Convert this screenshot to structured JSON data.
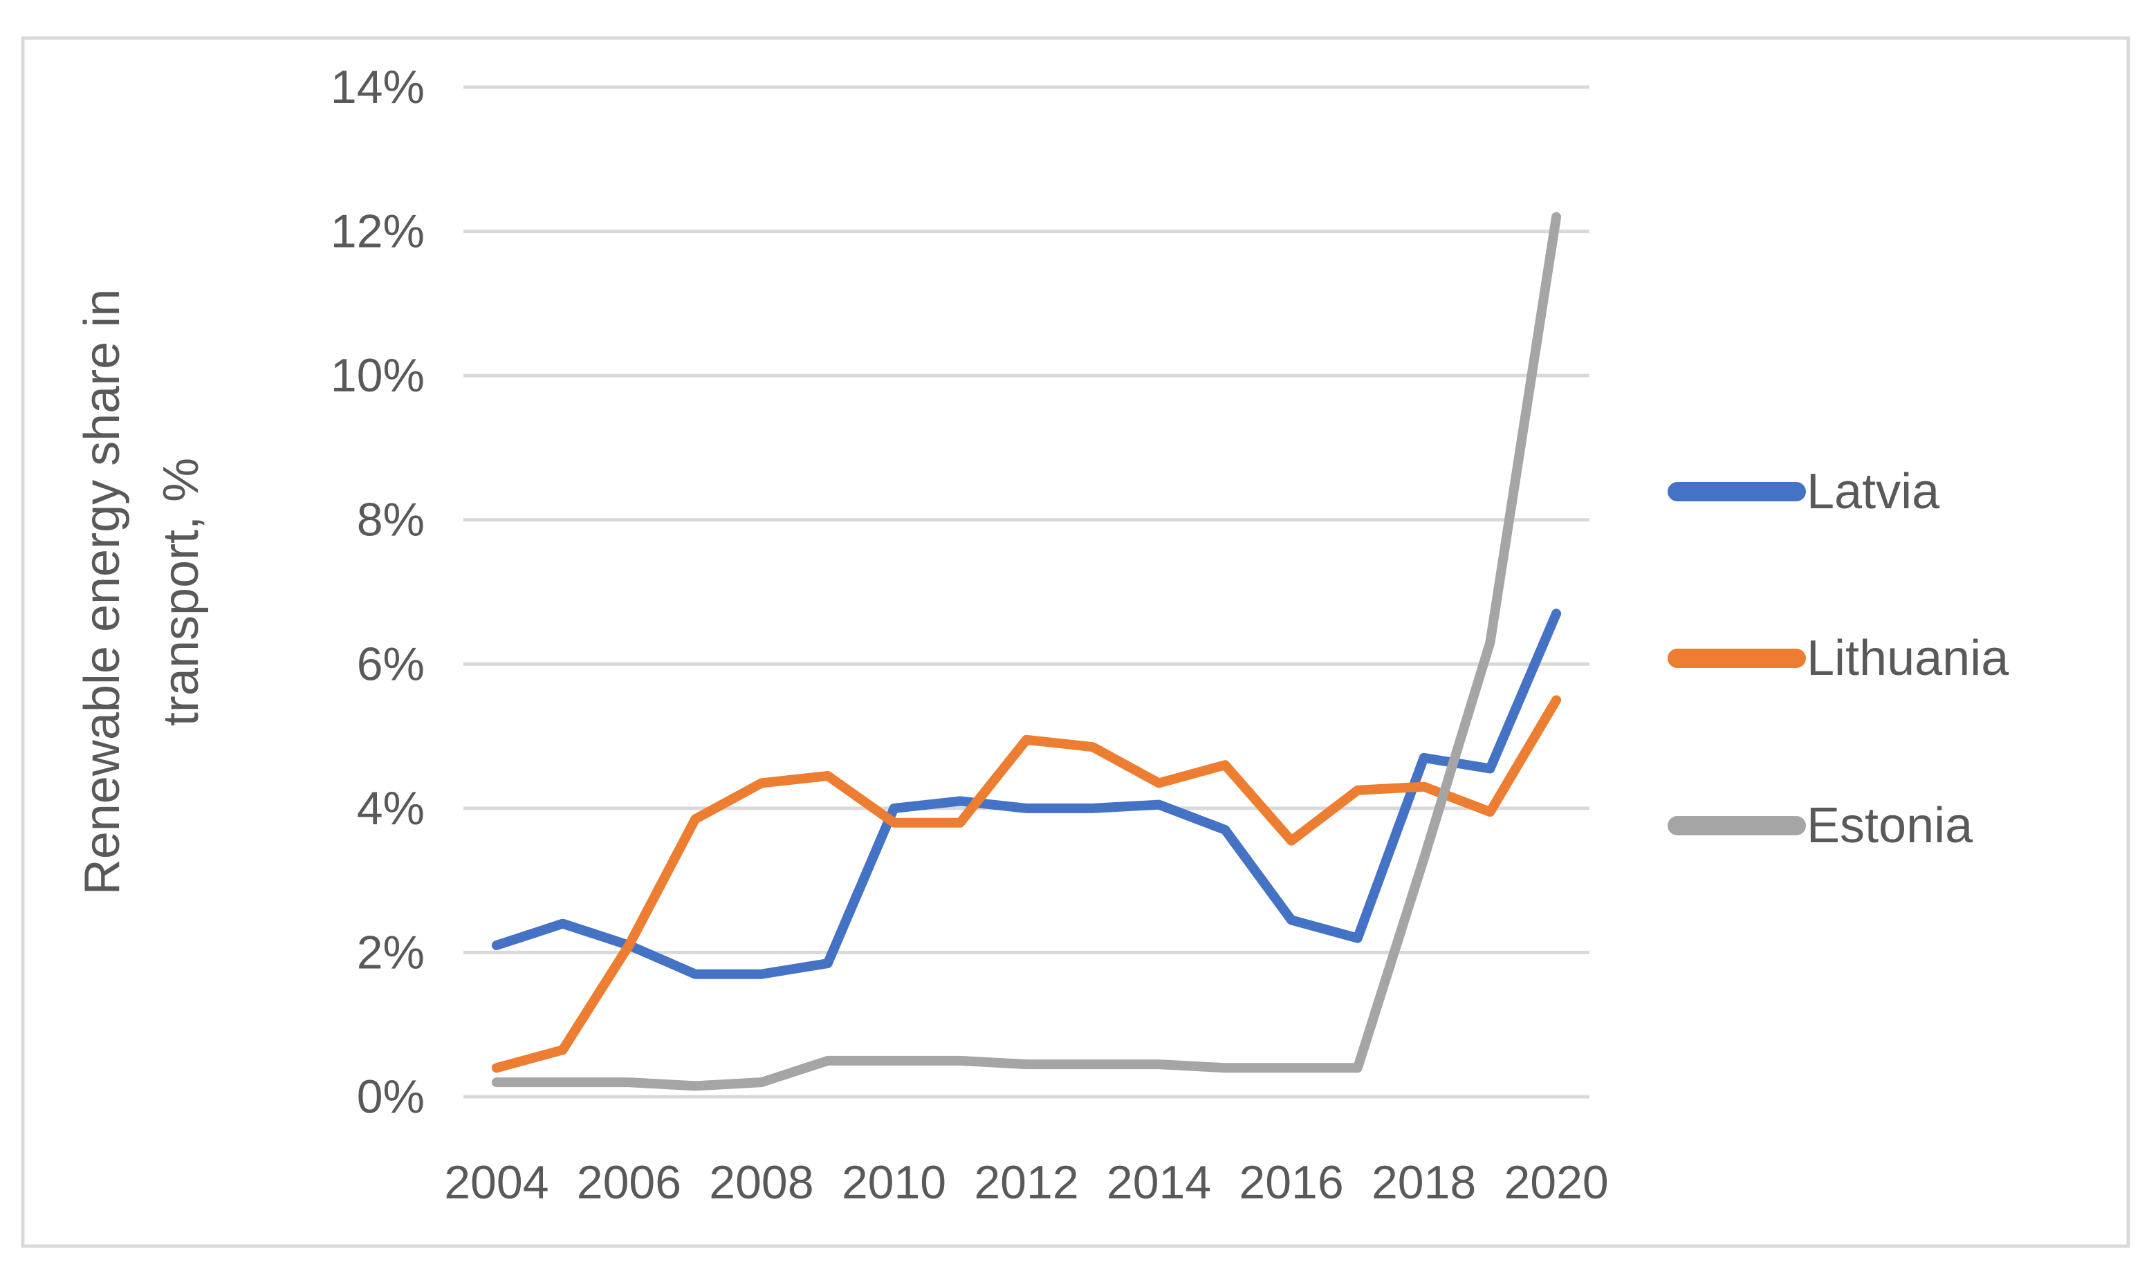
{
  "chart_data": {
    "type": "line",
    "title": "",
    "ylabel_lines": [
      "Renewable energy share in",
      "transport, %"
    ],
    "xlabel": "",
    "x": [
      2004,
      2005,
      2006,
      2007,
      2008,
      2009,
      2010,
      2011,
      2012,
      2013,
      2014,
      2015,
      2016,
      2017,
      2018,
      2019,
      2020
    ],
    "x_tick_years": [
      2004,
      2006,
      2008,
      2010,
      2012,
      2014,
      2016,
      2018,
      2020
    ],
    "y_tick_labels": [
      "0%",
      "2%",
      "4%",
      "6%",
      "8%",
      "10%",
      "12%",
      "14%"
    ],
    "ylim": [
      0,
      14
    ],
    "y_tick_step": 2,
    "grid": true,
    "legend_position": "right",
    "series": [
      {
        "name": "Latvia",
        "color": "#4472C4",
        "values": [
          2.1,
          2.4,
          2.1,
          1.7,
          1.7,
          1.85,
          4.0,
          4.1,
          4.0,
          4.0,
          4.05,
          3.7,
          2.45,
          2.2,
          4.7,
          4.55,
          6.7
        ]
      },
      {
        "name": "Lithuania",
        "color": "#ED7D31",
        "values": [
          0.4,
          0.65,
          2.1,
          3.85,
          4.35,
          4.45,
          3.8,
          3.8,
          4.95,
          4.85,
          4.35,
          4.6,
          3.55,
          4.25,
          4.3,
          3.95,
          5.5
        ]
      },
      {
        "name": "Estonia",
        "color": "#A5A5A5",
        "values": [
          0.2,
          0.2,
          0.2,
          0.15,
          0.2,
          0.5,
          0.5,
          0.5,
          0.45,
          0.45,
          0.45,
          0.4,
          0.4,
          0.4,
          3.3,
          6.3,
          12.2
        ]
      }
    ],
    "colors": {
      "background": "#FFFFFF",
      "plot_border": "#D9D9D9",
      "gridline": "#D9D9D9",
      "text": "#595959"
    }
  }
}
